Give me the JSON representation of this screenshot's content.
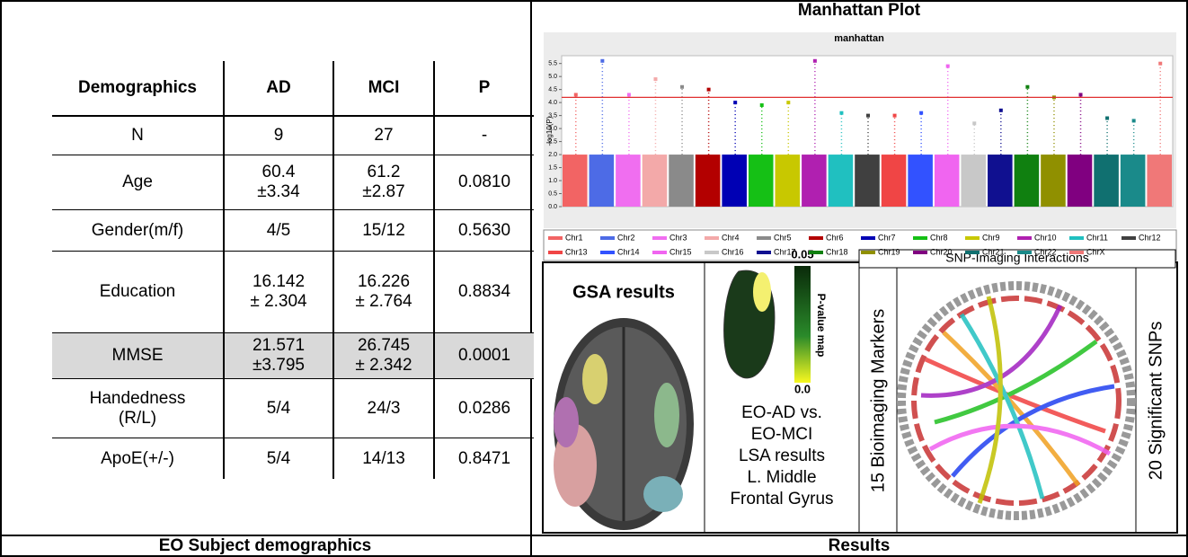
{
  "left": {
    "caption": "EO Subject demographics",
    "table": {
      "header": [
        "Demographics",
        "AD",
        "MCI",
        "P"
      ],
      "rows": [
        [
          "N",
          "9",
          "27",
          "-"
        ],
        [
          "Age",
          "60.4\n±3.34",
          "61.2\n±2.87",
          "0.0810"
        ],
        [
          "Gender(m/f)",
          "4/5",
          "15/12",
          "0.5630"
        ],
        [
          "Education",
          "16.142\n± 2.304",
          "16.226\n± 2.764",
          "0.8834"
        ],
        [
          "MMSE",
          "21.571\n±3.795",
          "26.745\n± 2.342",
          "0.0001"
        ],
        [
          "Handedness\n(R/L)",
          "5/4",
          "24/3",
          "0.0286"
        ],
        [
          "ApoE(+/-)",
          "5/4",
          "14/13",
          "0.8471"
        ]
      ]
    }
  },
  "right": {
    "caption": "Results",
    "manhattan": {
      "heading": "Manhattan Plot",
      "title": "manhattan",
      "ylabel": "-log10(P)",
      "ylim": [
        0,
        5.8
      ],
      "yticks": [
        {
          "value": 0,
          "label": "0.0"
        },
        0.5,
        {
          "value": 1,
          "label": "1.0"
        },
        1.5,
        {
          "value": 2,
          "label": "2.0"
        },
        2.5,
        {
          "value": 3,
          "label": "3.0"
        },
        3.5,
        {
          "value": 4,
          "label": "4.0"
        },
        4.5,
        {
          "value": 5,
          "label": "5.0"
        },
        5.5
      ],
      "threshold": 4.2,
      "series": [
        {
          "name": "Chr1",
          "color": "#f26464",
          "peak": 4.3
        },
        {
          "name": "Chr2",
          "color": "#4d6be6",
          "peak": 5.6
        },
        {
          "name": "Chr3",
          "color": "#f06ef0",
          "peak": 4.3
        },
        {
          "name": "Chr4",
          "color": "#f3a9a9",
          "peak": 4.9
        },
        {
          "name": "Chr5",
          "color": "#8a8a8a",
          "peak": 4.6
        },
        {
          "name": "Chr6",
          "color": "#b30000",
          "peak": 4.5
        },
        {
          "name": "Chr7",
          "color": "#0000b4",
          "peak": 4.0
        },
        {
          "name": "Chr8",
          "color": "#15c015",
          "peak": 3.9
        },
        {
          "name": "Chr9",
          "color": "#c8c800",
          "peak": 4.0
        },
        {
          "name": "Chr10",
          "color": "#b020b0",
          "peak": 5.6
        },
        {
          "name": "Chr11",
          "color": "#20c0c0",
          "peak": 3.6
        },
        {
          "name": "Chr12",
          "color": "#404040",
          "peak": 3.5
        },
        {
          "name": "Chr13",
          "color": "#f04545",
          "peak": 3.5
        },
        {
          "name": "Chr14",
          "color": "#3252ff",
          "peak": 3.6
        },
        {
          "name": "Chr15",
          "color": "#f065f0",
          "peak": 5.4
        },
        {
          "name": "Chr16",
          "color": "#c8c8c8",
          "peak": 3.2
        },
        {
          "name": "Chr17",
          "color": "#101090",
          "peak": 3.7
        },
        {
          "name": "Chr18",
          "color": "#108010",
          "peak": 4.6
        },
        {
          "name": "Chr19",
          "color": "#909000",
          "peak": 4.2
        },
        {
          "name": "Chr20",
          "color": "#800080",
          "peak": 4.3
        },
        {
          "name": "Chr21",
          "color": "#107070",
          "peak": 3.4
        },
        {
          "name": "Chr22",
          "color": "#1a8a8a",
          "peak": 3.3
        },
        {
          "name": "ChrX",
          "color": "#f07878",
          "peak": 5.5
        }
      ]
    },
    "gsa": {
      "label": "GSA results"
    },
    "lsa": {
      "scale_max": "0.05",
      "scale_min": "0.0",
      "scale_label": "P-value map",
      "caption": "EO-AD vs.\nEO-MCI\nLSA results\nL. Middle\nFrontal Gyrus"
    },
    "snp": {
      "title": "SNP-Imaging Interactions",
      "left_label": "15 Bioimaging Markers",
      "right_label": "20 Significant SNPs"
    }
  }
}
